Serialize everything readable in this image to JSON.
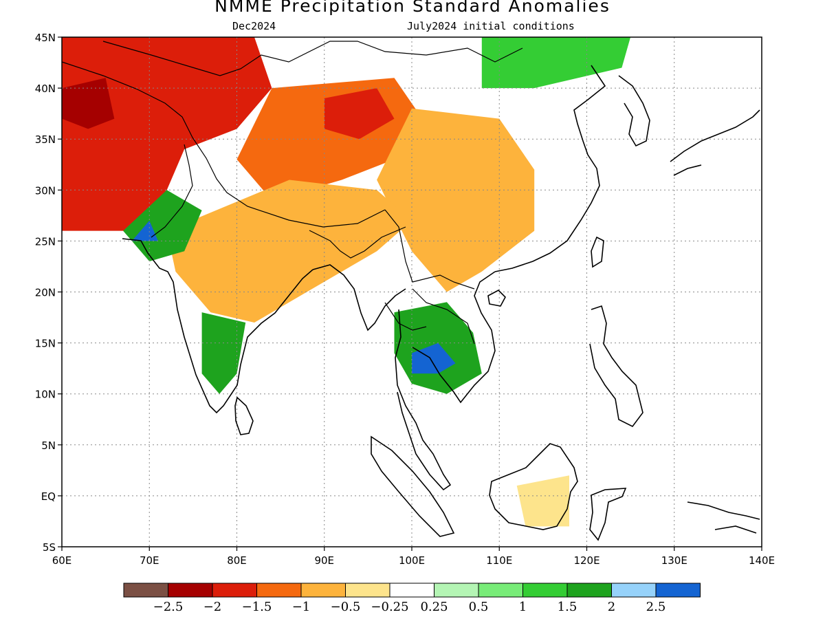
{
  "title": "NMME Precipitation Standard Anomalies",
  "subtitle_left": "Dec2024",
  "subtitle_right": "July2024 initial conditions",
  "map": {
    "lon_range": [
      60,
      140
    ],
    "lat_range": [
      -5,
      45
    ],
    "y_ticks": [
      {
        "lat": 45,
        "label": "45N"
      },
      {
        "lat": 40,
        "label": "40N"
      },
      {
        "lat": 35,
        "label": "35N"
      },
      {
        "lat": 30,
        "label": "30N"
      },
      {
        "lat": 25,
        "label": "25N"
      },
      {
        "lat": 20,
        "label": "20N"
      },
      {
        "lat": 15,
        "label": "15N"
      },
      {
        "lat": 10,
        "label": "10N"
      },
      {
        "lat": 5,
        "label": "5N"
      },
      {
        "lat": 0,
        "label": "EQ"
      },
      {
        "lat": -5,
        "label": "5S"
      }
    ],
    "x_ticks": [
      {
        "lon": 60,
        "label": "60E"
      },
      {
        "lon": 70,
        "label": "70E"
      },
      {
        "lon": 80,
        "label": "80E"
      },
      {
        "lon": 90,
        "label": "90E"
      },
      {
        "lon": 100,
        "label": "100E"
      },
      {
        "lon": 110,
        "label": "110E"
      },
      {
        "lon": 120,
        "label": "120E"
      },
      {
        "lon": 130,
        "label": "130E"
      },
      {
        "lon": 140,
        "label": "140E"
      }
    ],
    "grid": "dotted",
    "anomaly_regions": [
      {
        "name": "central-asia-dry",
        "level": -2,
        "lonlat": [
          [
            60,
            45
          ],
          [
            82,
            45
          ],
          [
            84,
            40
          ],
          [
            80,
            36
          ],
          [
            74,
            34
          ],
          [
            72,
            30
          ],
          [
            68,
            26
          ],
          [
            60,
            26
          ]
        ]
      },
      {
        "name": "northwest-dry-core",
        "level": -2.5,
        "lonlat": [
          [
            60,
            40
          ],
          [
            65,
            41
          ],
          [
            66,
            37
          ],
          [
            63,
            36
          ],
          [
            60,
            37
          ]
        ]
      },
      {
        "name": "tibet-dry",
        "level": -1.5,
        "lonlat": [
          [
            84,
            40
          ],
          [
            98,
            41
          ],
          [
            102,
            36
          ],
          [
            98,
            33
          ],
          [
            92,
            31
          ],
          [
            84,
            29
          ],
          [
            80,
            33
          ]
        ]
      },
      {
        "name": "tibet-dry-core",
        "level": -2,
        "lonlat": [
          [
            90,
            39
          ],
          [
            96,
            40
          ],
          [
            98,
            37
          ],
          [
            94,
            35
          ],
          [
            90,
            36
          ]
        ]
      },
      {
        "name": "china-dry",
        "level": -1,
        "lonlat": [
          [
            100,
            38
          ],
          [
            110,
            37
          ],
          [
            114,
            32
          ],
          [
            114,
            26
          ],
          [
            108,
            22
          ],
          [
            104,
            20
          ],
          [
            100,
            24
          ],
          [
            96,
            31
          ]
        ]
      },
      {
        "name": "india-dry",
        "level": -1,
        "lonlat": [
          [
            72,
            26
          ],
          [
            86,
            31
          ],
          [
            96,
            30
          ],
          [
            100,
            27
          ],
          [
            96,
            24
          ],
          [
            88,
            20
          ],
          [
            82,
            17
          ],
          [
            77,
            18
          ],
          [
            73,
            22
          ]
        ]
      },
      {
        "name": "gujarat-wet",
        "level": 1.5,
        "lonlat": [
          [
            67,
            26
          ],
          [
            72,
            30
          ],
          [
            76,
            28
          ],
          [
            74,
            24
          ],
          [
            70,
            23
          ]
        ]
      },
      {
        "name": "gujarat-wet-core",
        "level": 2.5,
        "lonlat": [
          [
            68,
            25
          ],
          [
            70,
            27
          ],
          [
            71,
            25
          ]
        ]
      },
      {
        "name": "south-india-wet",
        "level": 1.5,
        "lonlat": [
          [
            76,
            18
          ],
          [
            81,
            17
          ],
          [
            80,
            12
          ],
          [
            78,
            10
          ],
          [
            76,
            12
          ]
        ]
      },
      {
        "name": "mongolia-wet",
        "level": 1,
        "lonlat": [
          [
            108,
            45
          ],
          [
            125,
            45
          ],
          [
            124,
            42
          ],
          [
            114,
            40
          ],
          [
            108,
            40
          ]
        ]
      },
      {
        "name": "indochina-wet",
        "level": 1.5,
        "lonlat": [
          [
            98,
            18
          ],
          [
            104,
            19
          ],
          [
            107,
            16
          ],
          [
            108,
            12
          ],
          [
            104,
            10
          ],
          [
            100,
            11
          ],
          [
            98,
            14
          ]
        ]
      },
      {
        "name": "indochina-wet-core",
        "level": 2.5,
        "lonlat": [
          [
            100,
            14
          ],
          [
            103,
            15
          ],
          [
            105,
            13
          ],
          [
            103,
            12
          ],
          [
            100,
            12
          ]
        ]
      },
      {
        "name": "borneo-dry",
        "level": -0.5,
        "lonlat": [
          [
            112,
            1
          ],
          [
            118,
            2
          ],
          [
            118,
            -3
          ],
          [
            113,
            -3
          ]
        ]
      }
    ]
  },
  "colorbar": {
    "colors": [
      "#7b5044",
      "#a50000",
      "#dc1e0a",
      "#f5690f",
      "#fdb33c",
      "#fde48c",
      "#ffffff",
      "#b4f5b4",
      "#78ec78",
      "#34cd34",
      "#1ea31e",
      "#96d2fa",
      "#1464d2"
    ],
    "labels": [
      "−2.5",
      "−2",
      "−1.5",
      "−1",
      "−0.5",
      "−0.25",
      "0.25",
      "0.5",
      "1",
      "1.5",
      "2",
      "2.5"
    ]
  }
}
